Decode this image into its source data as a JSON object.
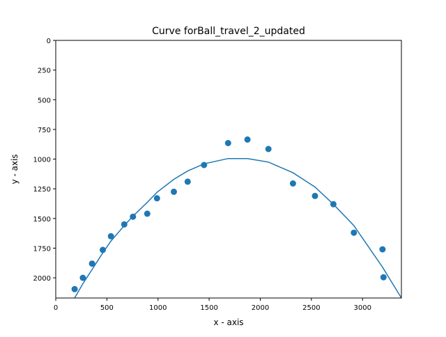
{
  "chart_data": {
    "type": "scatter",
    "title": "Curve forBall_travel_2_updated",
    "xlabel": "x - axis",
    "ylabel": "y - axis",
    "xlim": [
      0,
      3380
    ],
    "ylim": [
      2170,
      0
    ],
    "y_inverted": true,
    "x_ticks": [
      0,
      500,
      1000,
      1500,
      2000,
      2500,
      3000
    ],
    "y_ticks": [
      0,
      250,
      500,
      750,
      1000,
      1250,
      1500,
      1750,
      2000
    ],
    "grid": false,
    "legend": "none",
    "colors": {
      "series": "#1f77b4",
      "axes": "#000000",
      "background": "#ffffff"
    },
    "series": [
      {
        "kind": "points",
        "x": [
          185,
          265,
          355,
          460,
          540,
          670,
          755,
          895,
          990,
          1155,
          1290,
          1450,
          1685,
          1875,
          2080,
          2320,
          2535,
          2715,
          2915,
          3195,
          3205
        ],
        "y": [
          2095,
          2000,
          1880,
          1765,
          1650,
          1550,
          1485,
          1460,
          1330,
          1275,
          1190,
          1050,
          865,
          835,
          915,
          1205,
          1310,
          1380,
          1620,
          1760,
          1995
        ]
      },
      {
        "kind": "line",
        "x": [
          185,
          265,
          355,
          460,
          540,
          670,
          755,
          895,
          990,
          1155,
          1290,
          1450,
          1685,
          1875,
          2080,
          2320,
          2535,
          2715,
          2915,
          3195,
          3380
        ],
        "y": [
          2170,
          2050,
          1930,
          1790,
          1690,
          1560,
          1480,
          1365,
          1280,
          1170,
          1100,
          1040,
          995,
          995,
          1025,
          1115,
          1235,
          1380,
          1560,
          1910,
          2170
        ]
      }
    ]
  }
}
